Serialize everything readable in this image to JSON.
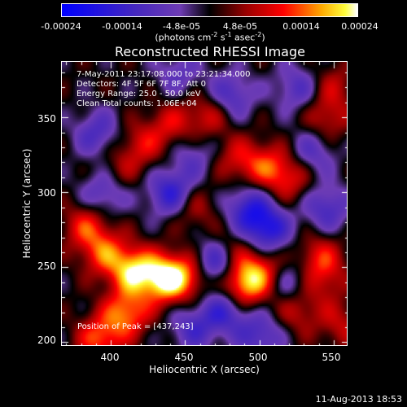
{
  "colorbar": {
    "ticks": [
      "-0.00024",
      "-0.00014",
      "-4.8e-05",
      "4.8e-05",
      "0.00014",
      "0.00024"
    ],
    "units_prefix": "(photons cm",
    "units_exp1": "-2",
    "units_mid": " s",
    "units_exp2": "-1",
    "units_mid2": " asec",
    "units_exp3": "-2",
    "units_suffix": ")"
  },
  "info": {
    "line1": "7-May-2011 23:17:08.000 to 23:21:34.000",
    "line2": "Detectors: 4F 5F 6F 7F 8F, Att 0",
    "line3": "Energy Range: 25.0 - 50.0 keV",
    "line4": "Clean    Total counts: 1.06E+04"
  },
  "peak_label": "Position of Peak = [437,243]",
  "footer": "11-Aug-2013 18:53",
  "chart_data": {
    "type": "heatmap",
    "title": "Reconstructed RHESSI Image",
    "xlabel": "Heliocentric X (arcsec)",
    "ylabel": "Heliocentric Y (arcsec)",
    "xlim": [
      367,
      560
    ],
    "ylim": [
      197,
      387
    ],
    "xticks": [
      400,
      450,
      500,
      550
    ],
    "yticks": [
      200,
      250,
      300,
      350
    ],
    "xtick_labels": [
      "400",
      "450",
      "500",
      "550"
    ],
    "ytick_labels": [
      "200",
      "250",
      "300",
      "350"
    ],
    "colorbar_range": [
      -0.00024,
      0.00024
    ],
    "peak": [
      437,
      243
    ],
    "sources": [
      {
        "x": 437,
        "y": 243,
        "value": 0.00024
      },
      {
        "x": 415,
        "y": 248,
        "value": 0.0002
      },
      {
        "x": 395,
        "y": 260,
        "value": 0.00013
      },
      {
        "x": 455,
        "y": 246,
        "value": 0.00012
      },
      {
        "x": 410,
        "y": 220,
        "value": 0.00016
      },
      {
        "x": 392,
        "y": 203,
        "value": 0.00014
      },
      {
        "x": 488,
        "y": 238,
        "value": 0.00018
      },
      {
        "x": 500,
        "y": 248,
        "value": 0.00013
      },
      {
        "x": 478,
        "y": 260,
        "value": 0.00011
      },
      {
        "x": 540,
        "y": 258,
        "value": 0.0001
      },
      {
        "x": 525,
        "y": 222,
        "value": 9e-05
      },
      {
        "x": 555,
        "y": 212,
        "value": 8e-05
      },
      {
        "x": 543,
        "y": 242,
        "value": 8e-05
      },
      {
        "x": 455,
        "y": 290,
        "value": 8e-05
      },
      {
        "x": 520,
        "y": 310,
        "value": 0.0001
      },
      {
        "x": 505,
        "y": 318,
        "value": 0.00011
      },
      {
        "x": 485,
        "y": 322,
        "value": 9e-05
      },
      {
        "x": 440,
        "y": 345,
        "value": 9e-05
      },
      {
        "x": 465,
        "y": 352,
        "value": 0.0001
      },
      {
        "x": 420,
        "y": 332,
        "value": 9e-05
      },
      {
        "x": 405,
        "y": 315,
        "value": 6e-05
      },
      {
        "x": 545,
        "y": 350,
        "value": 9e-05
      },
      {
        "x": 550,
        "y": 372,
        "value": 7e-05
      },
      {
        "x": 383,
        "y": 278,
        "value": 0.00012
      },
      {
        "x": 470,
        "y": 254,
        "value": -0.00022
      },
      {
        "x": 440,
        "y": 300,
        "value": -0.00016
      },
      {
        "x": 505,
        "y": 276,
        "value": -0.00017
      },
      {
        "x": 492,
        "y": 290,
        "value": -0.00014
      },
      {
        "x": 477,
        "y": 222,
        "value": -0.00014
      },
      {
        "x": 500,
        "y": 205,
        "value": -0.00012
      },
      {
        "x": 545,
        "y": 290,
        "value": -0.00012
      },
      {
        "x": 390,
        "y": 340,
        "value": -0.00011
      },
      {
        "x": 395,
        "y": 300,
        "value": -0.00011
      },
      {
        "x": 480,
        "y": 365,
        "value": -0.00012
      },
      {
        "x": 535,
        "y": 327,
        "value": -0.0001
      },
      {
        "x": 525,
        "y": 370,
        "value": -0.0001
      },
      {
        "x": 455,
        "y": 210,
        "value": -0.00011
      },
      {
        "x": 445,
        "y": 380,
        "value": -8e-05
      },
      {
        "x": 455,
        "y": 325,
        "value": -8e-05
      },
      {
        "x": 520,
        "y": 240,
        "value": -9e-05
      }
    ]
  }
}
